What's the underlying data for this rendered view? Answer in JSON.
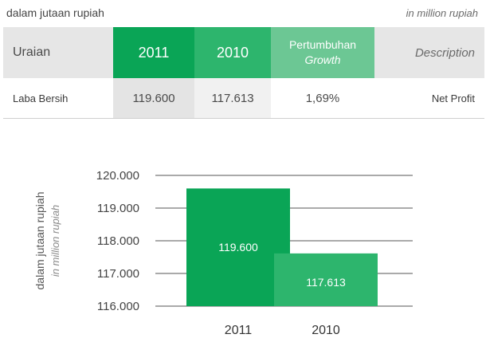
{
  "header": {
    "unit_left": "dalam jutaan rupiah",
    "unit_right": "in million rupiah"
  },
  "table": {
    "col_uraian": "Uraian",
    "col_2011": "2011",
    "col_2010": "2010",
    "col_growth_id": "Pertumbuhan",
    "col_growth_en": "Growth",
    "col_desc": "Description",
    "row": {
      "label": "Laba Bersih",
      "v2011": "119.600",
      "v2010": "117.613",
      "growth": "1,69%",
      "desc": "Net Profit"
    }
  },
  "colors": {
    "green_dark": "#0aa556",
    "green_mid": "#2db56d",
    "green_light": "#6cc794",
    "header_gray": "#e6e6e6"
  },
  "chart_data": {
    "type": "bar",
    "categories": [
      "2011",
      "2010"
    ],
    "values": [
      119600,
      117613
    ],
    "value_labels": [
      "119.600",
      "117.613"
    ],
    "bar_colors": [
      "#0aa556",
      "#2db56d"
    ],
    "ylabel": "dalam jutaan rupiah",
    "ylabel_en": "in million rupiah",
    "ylim": [
      116000,
      120000
    ],
    "yticks": [
      116000,
      117000,
      118000,
      119000,
      120000
    ],
    "ytick_labels": [
      "116.000",
      "117.000",
      "118.000",
      "119.000",
      "120.000"
    ],
    "grid": true
  }
}
